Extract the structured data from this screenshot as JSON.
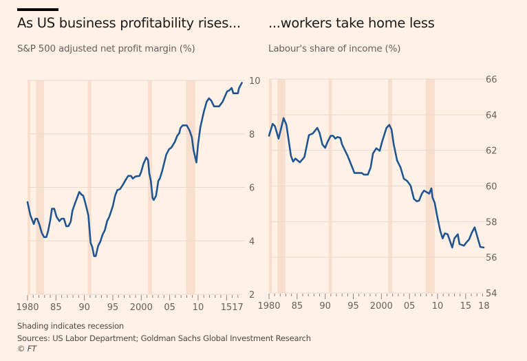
{
  "colors": {
    "background": "#fff1e5",
    "line": "#1e5592",
    "recession": "#f6d9c6",
    "grid": "#e8dbce",
    "axis": "#8a8480",
    "text": "#66605c"
  },
  "footer": {
    "note": "Shading indicates recession",
    "sources": "Sources: US Labor Department; Goldman Sachs Global Investment Research",
    "credit": "© FT"
  },
  "chart_data": [
    {
      "type": "line",
      "title": "As US business profitability rises...",
      "subtitle": "S&P 500 adjusted net profit margin (%)",
      "xlim": [
        1980,
        2017.75
      ],
      "ylim": [
        2,
        10
      ],
      "yticks": [
        2,
        4,
        6,
        8,
        10
      ],
      "ytick_labels": [
        "2",
        "4",
        "6",
        "8",
        "10"
      ],
      "xticks": [
        1980,
        1985,
        1990,
        1995,
        2000,
        2005,
        2010,
        2015,
        2017
      ],
      "xtick_labels": [
        "1980",
        "85",
        "90",
        "95",
        "2000",
        "05",
        "10",
        "15",
        "17"
      ],
      "y_axis_side": "right",
      "grid": "horizontal",
      "recessions": [
        [
          1980.0,
          1980.5
        ],
        [
          1981.5,
          1982.9
        ],
        [
          1990.6,
          1991.2
        ],
        [
          2001.2,
          2001.9
        ],
        [
          2007.9,
          2009.5
        ]
      ],
      "x": [
        1980,
        1980.1,
        1980.5,
        1981.1,
        1981.4,
        1981.7,
        1982.1,
        1982.5,
        1982.9,
        1983.3,
        1983.6,
        1984,
        1984.3,
        1984.7,
        1985.1,
        1985.6,
        1986,
        1986.4,
        1986.8,
        1987.2,
        1987.6,
        1987.9,
        1988.4,
        1988.7,
        1989.1,
        1989.5,
        1989.8,
        1990.2,
        1990.7,
        1991.1,
        1991.4,
        1991.7,
        1992,
        1992.4,
        1992.8,
        1993.2,
        1993.6,
        1994,
        1994.4,
        1995,
        1995.4,
        1995.8,
        1996.3,
        1996.8,
        1997.4,
        1997.7,
        1998.2,
        1998.5,
        1999,
        1999.7,
        2000,
        2000.4,
        2000.9,
        2001.2,
        2001.4,
        2001.7,
        2002,
        2002.2,
        2002.6,
        2003,
        2003.3,
        2003.7,
        2004,
        2004.4,
        2004.9,
        2005.3,
        2005.9,
        2006.3,
        2006.7,
        2006.9,
        2007.3,
        2008,
        2008.5,
        2008.9,
        2009.2,
        2009.7,
        2010,
        2010.4,
        2011,
        2011.5,
        2011.9,
        2012.3,
        2012.8,
        2013.7,
        2014.3,
        2015.1,
        2015.5,
        2015.9,
        2016.2,
        2017,
        2017.2,
        2017.7
      ],
      "values": [
        5.45,
        5.35,
        4.96,
        4.63,
        4.83,
        4.83,
        4.6,
        4.3,
        4.14,
        4.14,
        4.35,
        4.78,
        5.2,
        5.2,
        4.9,
        4.74,
        4.83,
        4.83,
        4.55,
        4.55,
        4.72,
        5.13,
        5.43,
        5.6,
        5.83,
        5.73,
        5.69,
        5.39,
        4.96,
        3.93,
        3.76,
        3.43,
        3.43,
        3.8,
        3.97,
        4.23,
        4.4,
        4.74,
        4.91,
        5.3,
        5.69,
        5.9,
        5.94,
        6.11,
        6.33,
        6.43,
        6.43,
        6.33,
        6.41,
        6.43,
        6.59,
        6.89,
        7.12,
        7.02,
        6.54,
        6.24,
        5.6,
        5.53,
        5.69,
        6.24,
        6.35,
        6.63,
        6.89,
        7.23,
        7.43,
        7.49,
        7.7,
        7.92,
        8.04,
        8.22,
        8.32,
        8.32,
        8.13,
        7.87,
        7.4,
        6.93,
        7.62,
        8.26,
        8.82,
        9.2,
        9.33,
        9.25,
        9.03,
        9.03,
        9.2,
        9.59,
        9.63,
        9.72,
        9.52,
        9.52,
        9.72,
        9.91
      ]
    },
    {
      "type": "line",
      "title": "...workers take home less",
      "subtitle": "Labour's share of income (%)",
      "xlim": [
        1980,
        2018.2
      ],
      "ylim": [
        54,
        66
      ],
      "yticks": [
        54,
        56,
        58,
        60,
        62,
        64,
        66
      ],
      "ytick_labels": [
        "54",
        "56",
        "58",
        "60",
        "62",
        "64",
        "66"
      ],
      "xticks": [
        1980,
        1985,
        1990,
        1995,
        2000,
        2005,
        2010,
        2015,
        2018
      ],
      "xtick_labels": [
        "1980",
        "85",
        "90",
        "95",
        "2000",
        "05",
        "10",
        "15",
        "18"
      ],
      "y_axis_side": "right",
      "grid": "horizontal",
      "recessions": [
        [
          1980.0,
          1980.5
        ],
        [
          1981.5,
          1982.9
        ],
        [
          1990.6,
          1991.2
        ],
        [
          2001.2,
          2001.9
        ],
        [
          2007.9,
          2009.5
        ]
      ],
      "x": [
        1980,
        1980.65,
        1981.05,
        1981.7,
        1982.1,
        1982.6,
        1983.1,
        1983.9,
        1984.3,
        1984.7,
        1985.5,
        1986.3,
        1987.1,
        1987.8,
        1988.6,
        1989,
        1989.5,
        1990,
        1990.4,
        1991,
        1991.4,
        1991.8,
        1992.2,
        1992.7,
        1993,
        1994,
        1994.9,
        1995.2,
        1996.5,
        1996.9,
        1997.6,
        1998.1,
        1998.5,
        1999.1,
        1999.7,
        2000.1,
        2000.3,
        2000.9,
        2001.4,
        2001.8,
        2002.2,
        2002.8,
        2003.4,
        2004,
        2004.6,
        2005.2,
        2005.8,
        2006.3,
        2006.7,
        2007.2,
        2007.6,
        2008.5,
        2008.9,
        2009.1,
        2009.5,
        2009.9,
        2010.5,
        2010.9,
        2011.3,
        2011.8,
        2012.6,
        2013,
        2013.6,
        2013.9,
        2014.7,
        2015.1,
        2015.6,
        2016.1,
        2016.6,
        2017.1,
        2017.6,
        2018.2
      ],
      "values": [
        62.82,
        63.49,
        63.36,
        62.66,
        63.17,
        63.81,
        63.43,
        61.69,
        61.37,
        61.54,
        61.33,
        61.63,
        62.85,
        62.95,
        63.26,
        62.98,
        62.33,
        62.14,
        62.46,
        62.82,
        62.82,
        62.66,
        62.75,
        62.7,
        62.33,
        61.69,
        60.98,
        60.73,
        60.73,
        60.64,
        60.64,
        61.05,
        61.82,
        62.12,
        61.97,
        62.46,
        62.66,
        63.26,
        63.43,
        63.17,
        62.33,
        61.43,
        61.05,
        60.41,
        60.28,
        60.02,
        59.27,
        59.14,
        59.18,
        59.57,
        59.74,
        59.57,
        59.87,
        59.35,
        59.05,
        58.35,
        57.45,
        57.06,
        57.34,
        57.29,
        56.55,
        57.06,
        57.29,
        56.74,
        56.65,
        56.83,
        57.0,
        57.38,
        57.68,
        57.13,
        56.58,
        56.55
      ]
    }
  ]
}
